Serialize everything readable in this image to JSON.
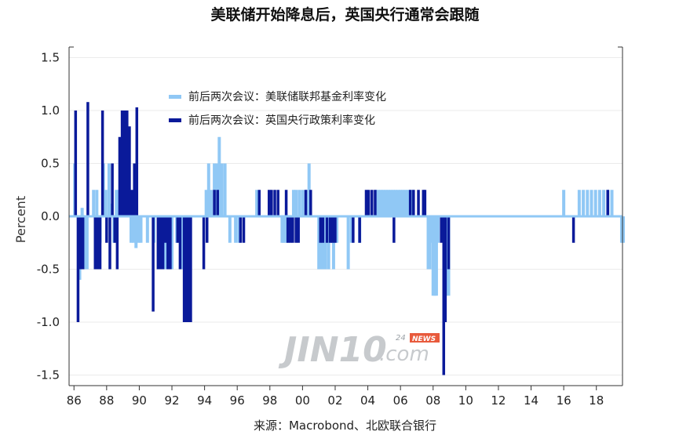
{
  "chart_data": {
    "type": "bar",
    "title": "美联储开始降息后，英国央行通常会跟随",
    "ylabel": "Percent",
    "source": "来源：Macrobond、北欧联合银行",
    "ylim": [
      -1.6,
      1.6
    ],
    "xlim": [
      85.7,
      119.6
    ],
    "y_ticks": [
      "1.5",
      "1.0",
      "0.5",
      "0.0",
      "-0.5",
      "-1.0",
      "-1.5"
    ],
    "y_tick_values": [
      1.5,
      1.0,
      0.5,
      0.0,
      -0.5,
      -1.0,
      -1.5
    ],
    "x_ticks": [
      "86",
      "88",
      "90",
      "92",
      "94",
      "96",
      "98",
      "00",
      "02",
      "04",
      "06",
      "08",
      "10",
      "12",
      "14",
      "16",
      "18"
    ],
    "x_tick_values": [
      86,
      88,
      90,
      92,
      94,
      96,
      98,
      100,
      102,
      104,
      106,
      108,
      110,
      112,
      114,
      116,
      118
    ],
    "legend_position": "top-left",
    "grid": "horizontal",
    "series": [
      {
        "name": "前后两次会议：美联储联邦基金利率变化",
        "color": "#90c8f5",
        "points": [
          [
            86.05,
            0.5
          ],
          [
            86.2,
            0.0
          ],
          [
            86.35,
            -0.6
          ],
          [
            86.5,
            0.08
          ],
          [
            86.65,
            -0.5
          ],
          [
            86.8,
            -0.5
          ],
          [
            87.0,
            0.0
          ],
          [
            87.2,
            0.25
          ],
          [
            87.4,
            0.25
          ],
          [
            87.6,
            -0.25
          ],
          [
            87.8,
            0.5
          ],
          [
            87.95,
            0.25
          ],
          [
            88.15,
            0.5
          ],
          [
            88.3,
            0.12
          ],
          [
            88.45,
            -0.25
          ],
          [
            88.6,
            0.25
          ],
          [
            88.75,
            0.25
          ],
          [
            88.9,
            0.38
          ],
          [
            89.05,
            0.25
          ],
          [
            89.2,
            0.5
          ],
          [
            89.35,
            0.25
          ],
          [
            89.5,
            -0.25
          ],
          [
            89.65,
            -0.25
          ],
          [
            89.8,
            -0.3
          ],
          [
            89.95,
            -0.25
          ],
          [
            90.1,
            -0.25
          ],
          [
            90.5,
            -0.25
          ],
          [
            90.9,
            -0.25
          ],
          [
            91.2,
            -0.5
          ],
          [
            91.4,
            -0.25
          ],
          [
            91.6,
            -0.5
          ],
          [
            91.8,
            -0.25
          ],
          [
            92.0,
            -0.5
          ],
          [
            92.3,
            -0.25
          ],
          [
            92.6,
            -0.5
          ],
          [
            94.1,
            0.25
          ],
          [
            94.25,
            0.5
          ],
          [
            94.4,
            0.25
          ],
          [
            94.6,
            0.5
          ],
          [
            94.75,
            0.5
          ],
          [
            94.9,
            0.75
          ],
          [
            95.05,
            0.5
          ],
          [
            95.25,
            0.5
          ],
          [
            95.55,
            -0.25
          ],
          [
            95.9,
            -0.25
          ],
          [
            96.1,
            -0.25
          ],
          [
            97.2,
            0.25
          ],
          [
            98.75,
            -0.25
          ],
          [
            98.85,
            -0.25
          ],
          [
            99.0,
            -0.25
          ],
          [
            99.45,
            0.25
          ],
          [
            99.6,
            0.25
          ],
          [
            99.8,
            0.25
          ],
          [
            100.0,
            0.25
          ],
          [
            100.2,
            0.25
          ],
          [
            100.4,
            0.5
          ],
          [
            101.0,
            -0.5
          ],
          [
            101.1,
            -0.5
          ],
          [
            101.2,
            -0.5
          ],
          [
            101.3,
            -0.5
          ],
          [
            101.4,
            -0.5
          ],
          [
            101.5,
            -0.25
          ],
          [
            101.6,
            -0.5
          ],
          [
            101.7,
            -0.25
          ],
          [
            101.8,
            -0.25
          ],
          [
            101.9,
            -0.5
          ],
          [
            102.1,
            -0.25
          ],
          [
            102.8,
            -0.5
          ],
          [
            103.0,
            -0.25
          ],
          [
            103.5,
            -0.25
          ],
          [
            104.5,
            0.25
          ],
          [
            104.65,
            0.25
          ],
          [
            104.8,
            0.25
          ],
          [
            104.95,
            0.25
          ],
          [
            105.1,
            0.25
          ],
          [
            105.25,
            0.25
          ],
          [
            105.4,
            0.25
          ],
          [
            105.55,
            0.25
          ],
          [
            105.7,
            0.25
          ],
          [
            105.85,
            0.25
          ],
          [
            106.0,
            0.25
          ],
          [
            106.15,
            0.25
          ],
          [
            106.3,
            0.25
          ],
          [
            106.45,
            0.25
          ],
          [
            106.6,
            0.25
          ],
          [
            106.75,
            0.25
          ],
          [
            107.7,
            -0.5
          ],
          [
            107.8,
            -0.5
          ],
          [
            107.9,
            -0.25
          ],
          [
            108.0,
            -0.75
          ],
          [
            108.1,
            -0.75
          ],
          [
            108.2,
            -0.75
          ],
          [
            108.3,
            -0.25
          ],
          [
            108.8,
            -0.75
          ],
          [
            108.95,
            -0.75
          ],
          [
            116.0,
            0.25
          ],
          [
            116.95,
            0.25
          ],
          [
            117.2,
            0.25
          ],
          [
            117.45,
            0.25
          ],
          [
            117.7,
            0.25
          ],
          [
            117.95,
            0.25
          ],
          [
            118.2,
            0.25
          ],
          [
            118.45,
            0.25
          ],
          [
            118.7,
            0.25
          ],
          [
            118.95,
            0.25
          ],
          [
            119.55,
            -0.25
          ],
          [
            119.65,
            -0.25
          ]
        ]
      },
      {
        "name": "前后两次会议：英国央行政策利率变化",
        "color": "#0a1a9a",
        "points": [
          [
            86.1,
            1.0
          ],
          [
            86.25,
            -1.0
          ],
          [
            86.4,
            -0.5
          ],
          [
            86.55,
            -0.5
          ],
          [
            86.85,
            1.08
          ],
          [
            87.3,
            -0.5
          ],
          [
            87.45,
            -0.5
          ],
          [
            87.6,
            -0.5
          ],
          [
            87.75,
            1.0
          ],
          [
            88.0,
            -0.25
          ],
          [
            88.2,
            -0.5
          ],
          [
            88.35,
            0.5
          ],
          [
            88.5,
            -0.25
          ],
          [
            88.65,
            -0.5
          ],
          [
            88.8,
            0.75
          ],
          [
            88.95,
            1.0
          ],
          [
            89.1,
            1.0
          ],
          [
            89.25,
            1.0
          ],
          [
            89.4,
            0.85
          ],
          [
            89.55,
            0.25
          ],
          [
            89.7,
            0.5
          ],
          [
            89.85,
            1.03
          ],
          [
            90.85,
            -0.9
          ],
          [
            91.15,
            -0.5
          ],
          [
            91.3,
            -0.5
          ],
          [
            91.45,
            -0.5
          ],
          [
            91.6,
            -0.25
          ],
          [
            91.75,
            -0.5
          ],
          [
            91.9,
            -0.5
          ],
          [
            92.35,
            -0.25
          ],
          [
            92.5,
            -0.5
          ],
          [
            92.75,
            -1.0
          ],
          [
            92.85,
            -1.0
          ],
          [
            92.95,
            -1.0
          ],
          [
            93.05,
            -1.0
          ],
          [
            93.15,
            -1.0
          ],
          [
            93.95,
            -0.5
          ],
          [
            94.15,
            -0.25
          ],
          [
            94.6,
            0.25
          ],
          [
            94.8,
            0.25
          ],
          [
            96.2,
            -0.25
          ],
          [
            96.4,
            -0.25
          ],
          [
            97.35,
            0.25
          ],
          [
            97.95,
            0.25
          ],
          [
            98.1,
            0.25
          ],
          [
            98.3,
            0.25
          ],
          [
            98.5,
            0.25
          ],
          [
            99.0,
            0.25
          ],
          [
            99.1,
            -0.25
          ],
          [
            99.25,
            -0.25
          ],
          [
            99.4,
            -0.25
          ],
          [
            99.6,
            -0.25
          ],
          [
            99.75,
            -0.25
          ],
          [
            100.2,
            0.25
          ],
          [
            100.5,
            0.25
          ],
          [
            101.1,
            -0.25
          ],
          [
            101.25,
            -0.25
          ],
          [
            101.5,
            -0.25
          ],
          [
            101.7,
            -0.25
          ],
          [
            101.85,
            -0.25
          ],
          [
            102.0,
            -0.25
          ],
          [
            103.1,
            -0.25
          ],
          [
            103.5,
            -0.25
          ],
          [
            103.9,
            0.25
          ],
          [
            104.05,
            0.25
          ],
          [
            104.25,
            0.25
          ],
          [
            104.45,
            0.25
          ],
          [
            105.6,
            -0.25
          ],
          [
            106.6,
            0.25
          ],
          [
            106.8,
            0.25
          ],
          [
            107.1,
            0.25
          ],
          [
            107.4,
            0.25
          ],
          [
            107.5,
            0.25
          ],
          [
            108.5,
            -0.25
          ],
          [
            108.65,
            -1.5
          ],
          [
            108.75,
            -1.0
          ],
          [
            108.95,
            -0.5
          ],
          [
            116.6,
            -0.25
          ],
          [
            118.7,
            0.25
          ]
        ]
      }
    ]
  },
  "watermark": {
    "brand": "JIN10",
    "domain": ".com",
    "tag_num": "24",
    "tag_news": "NEWS"
  }
}
